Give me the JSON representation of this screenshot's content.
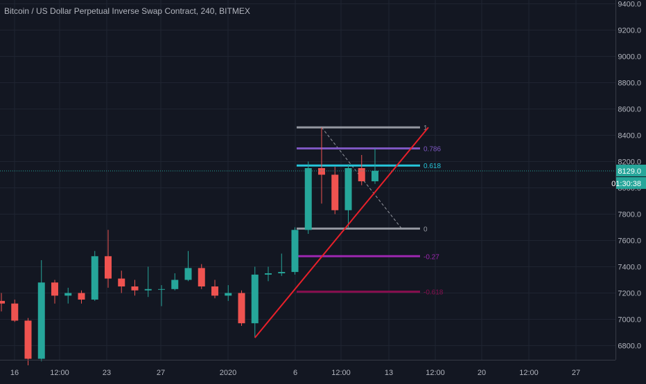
{
  "chart_data": {
    "type": "candlestick",
    "title": "Bitcoin / US Dollar Perpetual Inverse Swap Contract, 240, BITMEX",
    "colors": {
      "background": "#131722",
      "grid": "#1f2431",
      "axis_text": "#b2b5be",
      "up": "#26a69a",
      "down": "#ef5350",
      "trendline": "#e8202a",
      "current_price_line": "#26a69a"
    },
    "y_axis": {
      "min": 6700,
      "max": 9420,
      "ticks": [
        "9400.0",
        "9200.0",
        "9000.0",
        "8800.0",
        "8600.0",
        "8400.0",
        "8200.0",
        "8000.0",
        "7800.0",
        "7600.0",
        "7400.0",
        "7200.0",
        "7000.0",
        "6800.0"
      ]
    },
    "x_axis": {
      "ticks": [
        "16",
        "12:00",
        "23",
        "27",
        "2020",
        "6",
        "12:00",
        "13",
        "12:00",
        "20",
        "12:00",
        "27"
      ]
    },
    "current_price": {
      "label": "8129.0",
      "value": 8129,
      "countdown": "01:30:38"
    },
    "candles": [
      {
        "x": "Dec 15",
        "o": 7140,
        "h": 7200,
        "l": 7060,
        "c": 7120
      },
      {
        "x": "Dec 16",
        "o": 7120,
        "h": 7150,
        "l": 6980,
        "c": 6990
      },
      {
        "x": "Dec 17",
        "o": 6990,
        "h": 7010,
        "l": 6650,
        "c": 6700
      },
      {
        "x": "Dec 18",
        "o": 6700,
        "h": 7450,
        "l": 6680,
        "c": 7280
      },
      {
        "x": "Dec 19",
        "o": 7280,
        "h": 7300,
        "l": 7120,
        "c": 7180
      },
      {
        "x": "Dec 20",
        "o": 7180,
        "h": 7240,
        "l": 7120,
        "c": 7200
      },
      {
        "x": "Dec 21",
        "o": 7200,
        "h": 7220,
        "l": 7120,
        "c": 7150
      },
      {
        "x": "Dec 22",
        "o": 7150,
        "h": 7520,
        "l": 7140,
        "c": 7480
      },
      {
        "x": "Dec 23",
        "o": 7480,
        "h": 7680,
        "l": 7240,
        "c": 7310
      },
      {
        "x": "Dec 24",
        "o": 7310,
        "h": 7370,
        "l": 7200,
        "c": 7250
      },
      {
        "x": "Dec 25",
        "o": 7250,
        "h": 7300,
        "l": 7180,
        "c": 7220
      },
      {
        "x": "Dec 26",
        "o": 7220,
        "h": 7400,
        "l": 7170,
        "c": 7230
      },
      {
        "x": "Dec 27",
        "o": 7230,
        "h": 7260,
        "l": 7100,
        "c": 7230
      },
      {
        "x": "Dec 28",
        "o": 7230,
        "h": 7350,
        "l": 7220,
        "c": 7300
      },
      {
        "x": "Dec 29",
        "o": 7300,
        "h": 7520,
        "l": 7290,
        "c": 7390
      },
      {
        "x": "Dec 30",
        "o": 7390,
        "h": 7420,
        "l": 7230,
        "c": 7250
      },
      {
        "x": "Dec 31",
        "o": 7250,
        "h": 7300,
        "l": 7160,
        "c": 7180
      },
      {
        "x": "Jan 1",
        "o": 7180,
        "h": 7260,
        "l": 7140,
        "c": 7200
      },
      {
        "x": "Jan 2",
        "o": 7200,
        "h": 7220,
        "l": 6950,
        "c": 6970
      },
      {
        "x": "Jan 3",
        "o": 6970,
        "h": 7400,
        "l": 6860,
        "c": 7340
      },
      {
        "x": "Jan 4",
        "o": 7340,
        "h": 7400,
        "l": 7290,
        "c": 7350
      },
      {
        "x": "Jan 5",
        "o": 7350,
        "h": 7500,
        "l": 7330,
        "c": 7360
      },
      {
        "x": "Jan 6",
        "o": 7360,
        "h": 7700,
        "l": 7340,
        "c": 7680
      },
      {
        "x": "Jan 7",
        "o": 7680,
        "h": 8200,
        "l": 7650,
        "c": 8150
      },
      {
        "x": "Jan 8",
        "o": 8150,
        "h": 8460,
        "l": 7880,
        "c": 8100
      },
      {
        "x": "Jan 9",
        "o": 8100,
        "h": 8160,
        "l": 7800,
        "c": 7830
      },
      {
        "x": "Jan 10",
        "o": 7830,
        "h": 8180,
        "l": 7700,
        "c": 8150
      },
      {
        "x": "Jan 11",
        "o": 8150,
        "h": 8250,
        "l": 8020,
        "c": 8050
      },
      {
        "x": "Jan 12",
        "o": 8050,
        "h": 8300,
        "l": 8030,
        "c": 8130
      }
    ],
    "trendline": {
      "from": {
        "x": "Jan 3",
        "y": 6860
      },
      "to": {
        "x": "Jan 16",
        "y": 8460
      }
    },
    "fib_diagonal": {
      "from": {
        "x": "Jan 8",
        "y": 8460
      },
      "to": {
        "x": "Jan 14",
        "y": 7690
      }
    },
    "fib_levels": [
      {
        "label": "1",
        "value": 8460,
        "color": "#9598a1"
      },
      {
        "label": "0.786",
        "value": 8300,
        "color": "#7e57c2"
      },
      {
        "label": "0.618",
        "value": 8170,
        "color": "#26c6da"
      },
      {
        "label": "0",
        "value": 7690,
        "color": "#9598a1"
      },
      {
        "label": "-0.27",
        "value": 7480,
        "color": "#9c27b0"
      },
      {
        "label": "-0.618",
        "value": 7210,
        "color": "#880e4f"
      }
    ]
  }
}
